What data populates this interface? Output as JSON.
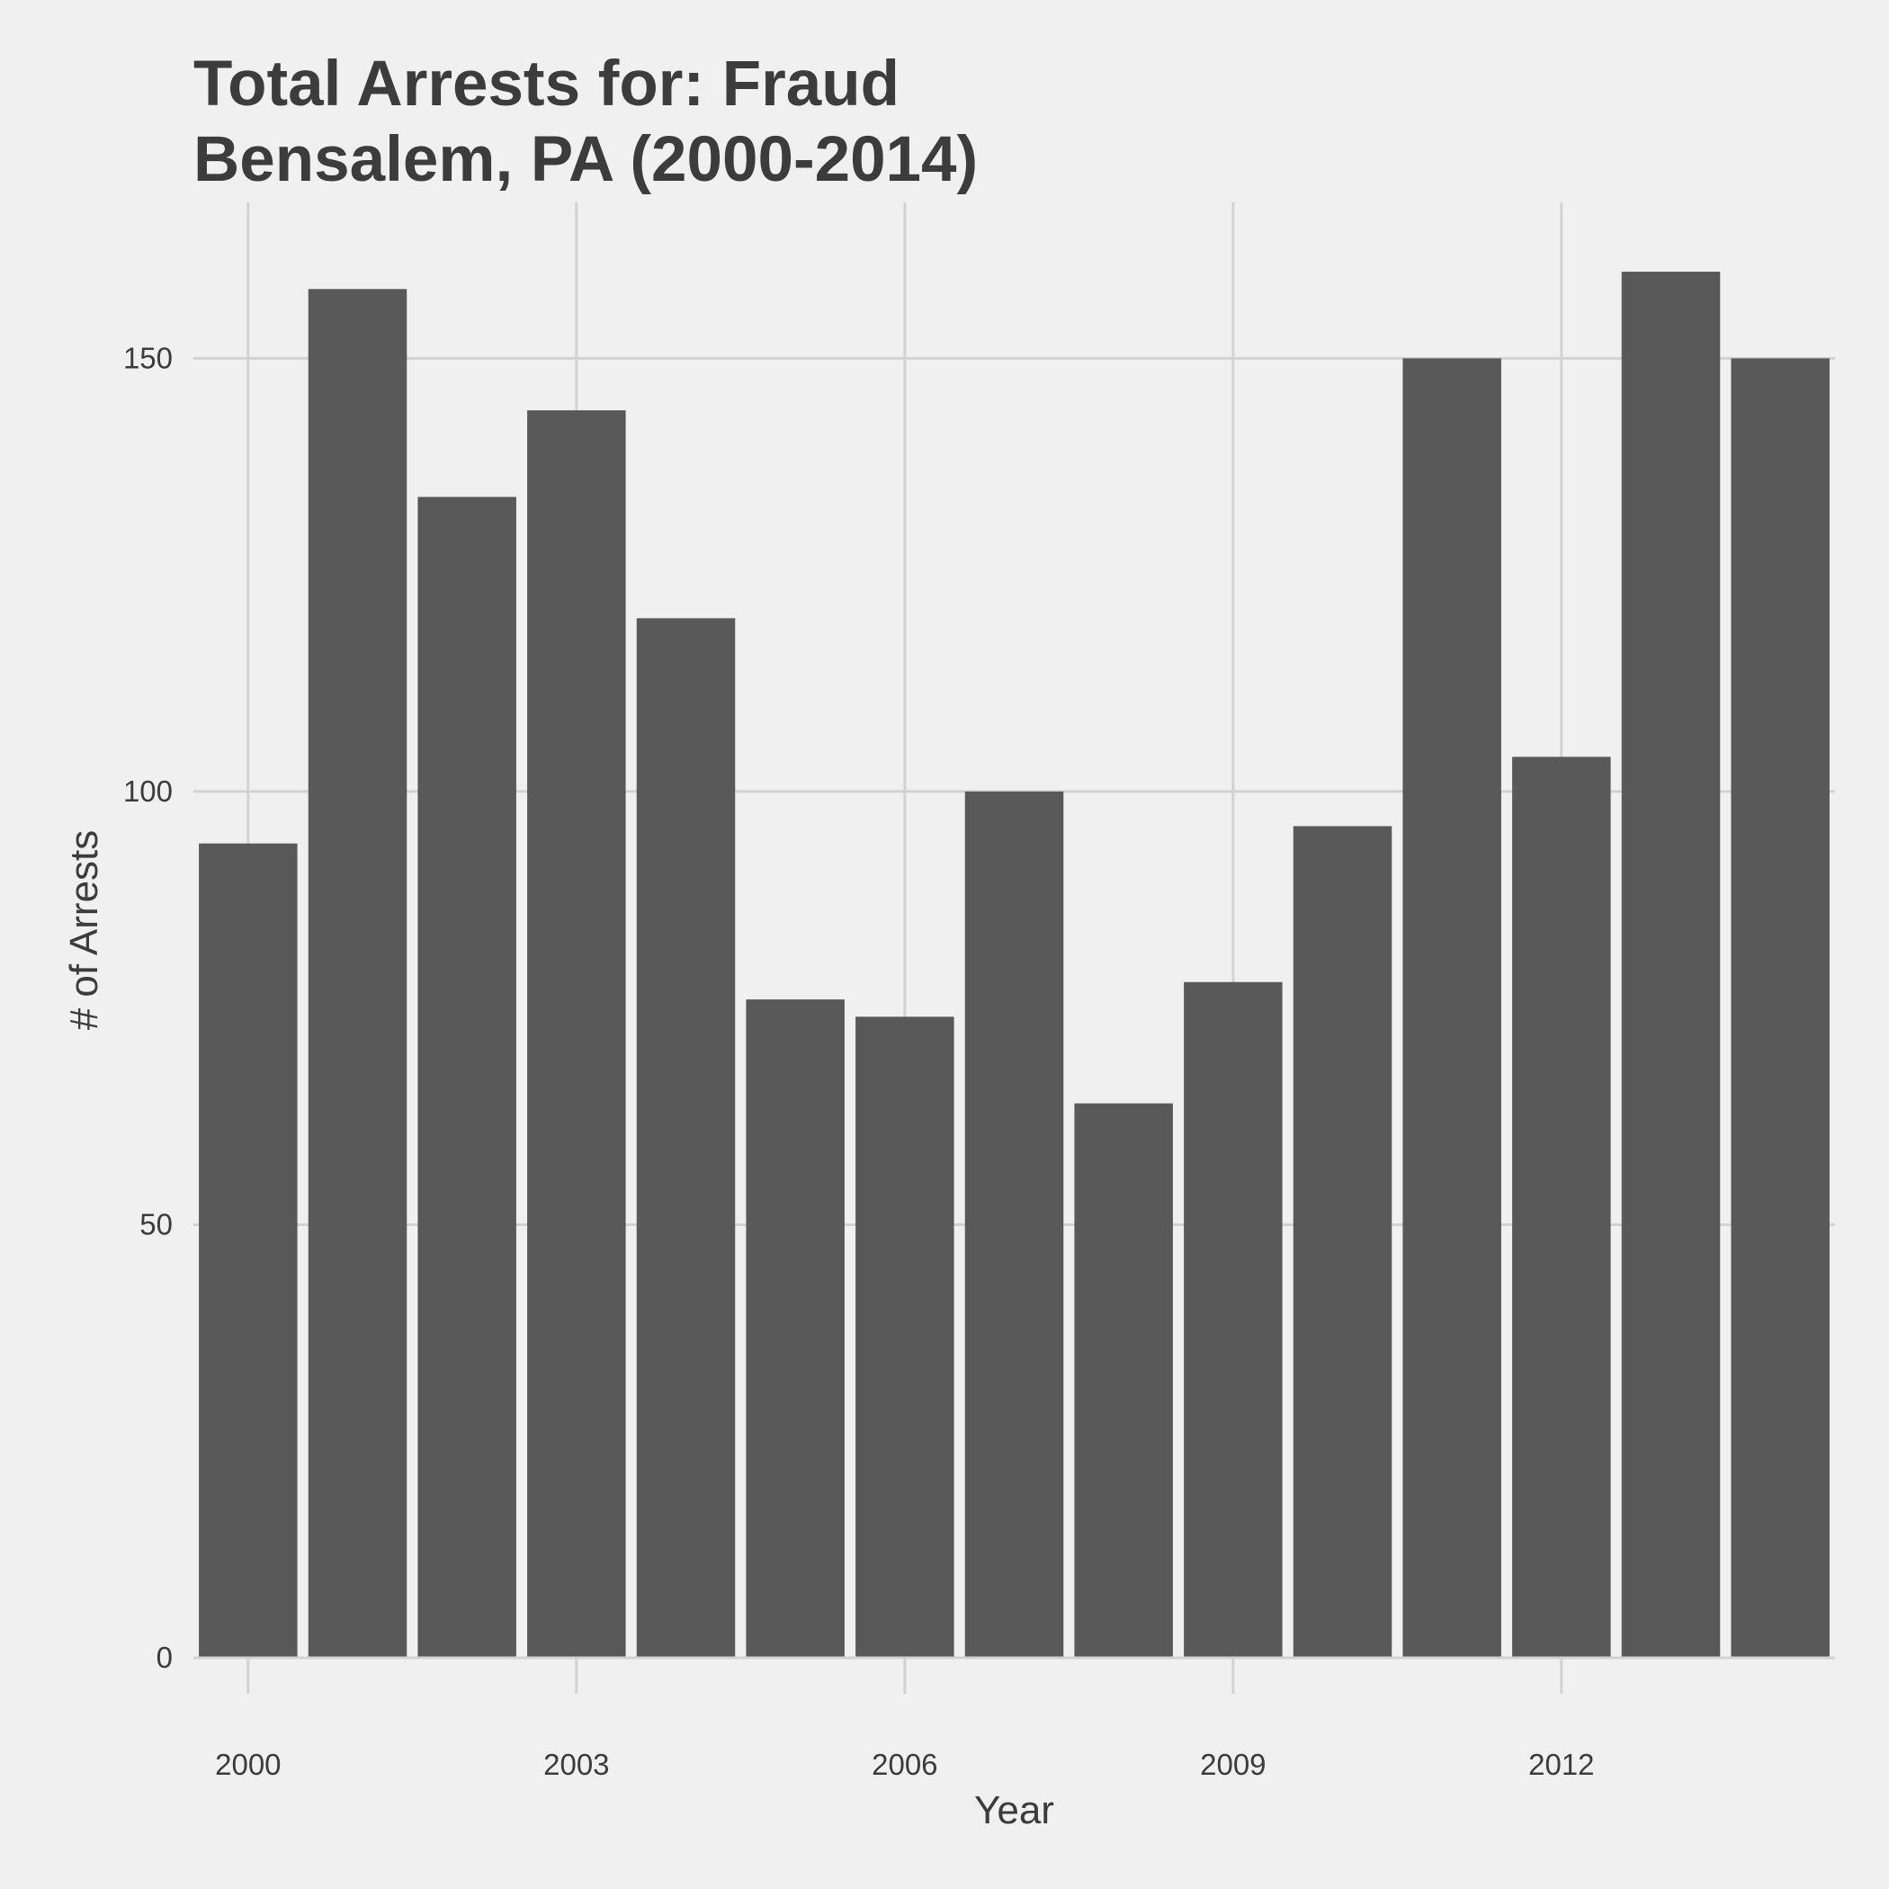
{
  "chart_data": {
    "type": "bar",
    "title_lines": [
      "Total Arrests for: Fraud",
      "Bensalem, PA (2000-2014)"
    ],
    "xlabel": "Year",
    "ylabel": "# of Arrests",
    "x": [
      2000,
      2001,
      2002,
      2003,
      2004,
      2005,
      2006,
      2007,
      2008,
      2009,
      2010,
      2011,
      2012,
      2013,
      2014
    ],
    "values": [
      94,
      158,
      134,
      144,
      120,
      76,
      74,
      100,
      64,
      78,
      96,
      150,
      104,
      160,
      150
    ],
    "x_ticks": [
      2000,
      2003,
      2006,
      2009,
      2012
    ],
    "y_ticks": [
      0,
      50,
      100,
      150
    ],
    "ylim": [
      0,
      168
    ],
    "grid": true,
    "legend": "none",
    "colors": {
      "bar": "#595959",
      "background": "#f0f0f0",
      "grid": "#d2d2d2",
      "text": "#3c3c3c"
    }
  }
}
